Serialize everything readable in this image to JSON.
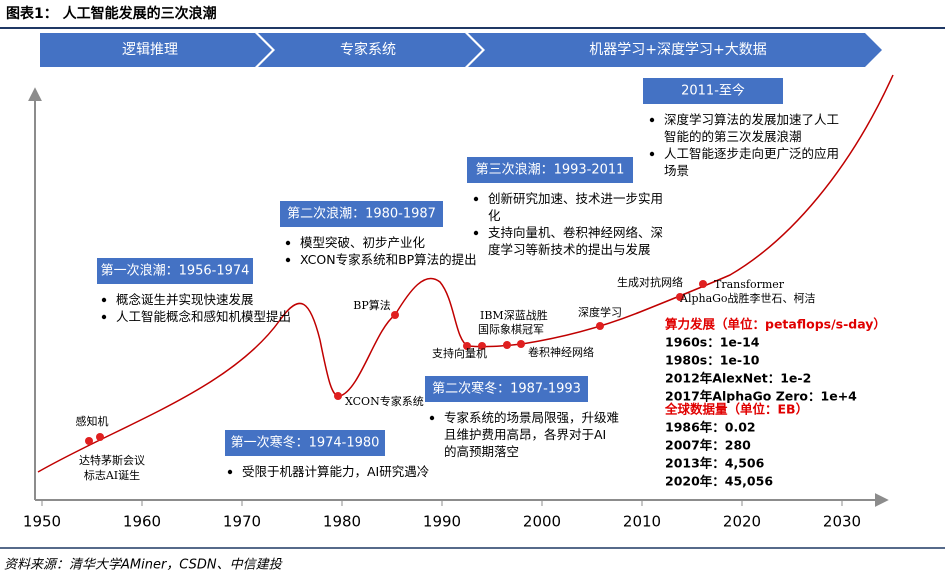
{
  "header": {
    "title": "图表1：  人工智能发展的三次浪潮"
  },
  "phases": [
    "逻辑推理",
    "专家系统",
    "机器学习+深度学习+大数据"
  ],
  "waves": [
    {
      "title": "第一次浪潮：1956-1974",
      "bullets": [
        "概念诞生并实现快速发展",
        "人工智能概念和感知机模型提出"
      ]
    },
    {
      "title": "第二次浪潮：1980-1987",
      "bullets": [
        "模型突破、初步产业化",
        "XCON专家系统和BP算法的提出"
      ]
    },
    {
      "title": "第三次浪潮：1993-2011",
      "bullets": [
        "创新研究加速、技术进一步实用化",
        "支持向量机、卷积神经网络、深度学习等新技术的提出与发展"
      ]
    },
    {
      "title": "2011-至今",
      "bullets": [
        "深度学习算法的发展加速了人工智能的的第三次发展浪潮",
        "人工智能逐步走向更广泛的应用场景"
      ]
    }
  ],
  "winters": [
    {
      "title": "第一次寒冬：1974-1980",
      "bullets": [
        "受限于机器计算能力，AI研究遇冷"
      ]
    },
    {
      "title": "第二次寒冬：1987-1993",
      "bullets": [
        "专家系统的场景局限强，升级难且维护费用高昂，各界对于AI的高预期落空"
      ]
    }
  ],
  "milestones": [
    "感知机",
    "达特茅斯会议",
    "标志AI诞生",
    "XCON专家系统",
    "BP算法",
    "IBM深蓝战胜",
    "国际象棋冠军",
    "支持向量机",
    "卷积神经网络",
    "深度学习",
    "生成对抗网络",
    "Transformer",
    "AlphaGo战胜李世石、柯洁"
  ],
  "compute": {
    "title": "算力发展（单位：petaflops/s-day）",
    "items": [
      "1960s：1e-14",
      "1980s：1e-10",
      "2012年AlexNet：1e-2",
      "2017年AlphaGo Zero：1e+4"
    ]
  },
  "data_volume": {
    "title": "全球数据量（单位：EB）",
    "items": [
      "1986年：0.02",
      "2007年：280",
      "2013年：4,506",
      "2020年：45,056"
    ]
  },
  "axis": {
    "years": [
      1950,
      1960,
      1970,
      1980,
      1990,
      2000,
      2010,
      2020,
      2030
    ]
  },
  "source": "资料来源：清华大学AMiner，CSDN、中信建投"
}
